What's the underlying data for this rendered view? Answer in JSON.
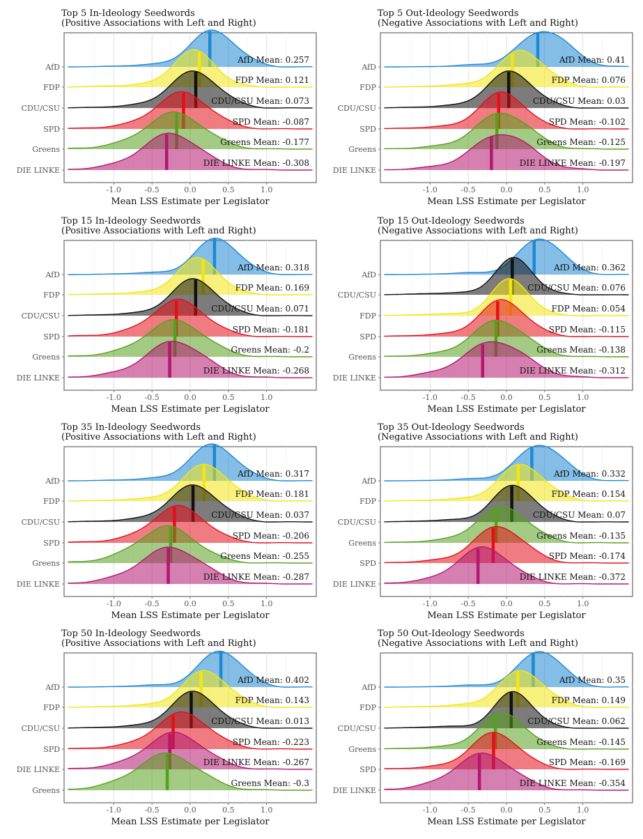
{
  "colors": {
    "AfD": "#1f88d3",
    "FDP": "#f3e613",
    "CDU/CSU": "#111111",
    "SPD": "#e3101b",
    "Greens": "#57a01f",
    "DIE LINKE": "#b2186f"
  },
  "chart_data": [
    {
      "type": "ridgeline",
      "title": "Top 5 In-Ideology Seedwords",
      "subtitle": "(Positive Associations with Left and Right)",
      "xlabel": "Mean LSS Estimate per Legislator",
      "x_ticks": [
        "-1.0",
        "-0.5",
        "0.0",
        "0.5",
        "1.0"
      ],
      "xlim": [
        -1.65,
        1.65
      ],
      "series": [
        {
          "party": "AfD",
          "mean": 0.257,
          "mean_label": "AfD Mean: 0.257",
          "peak": 0.3,
          "sd": 0.3
        },
        {
          "party": "FDP",
          "mean": 0.121,
          "mean_label": "FDP Mean: 0.121",
          "peak": 0.05,
          "sd": 0.28
        },
        {
          "party": "CDU/CSU",
          "mean": 0.073,
          "mean_label": "CDU/CSU Mean: 0.073",
          "peak": 0.05,
          "sd": 0.32
        },
        {
          "party": "SPD",
          "mean": -0.087,
          "mean_label": "SPD Mean: -0.087",
          "peak": -0.1,
          "sd": 0.35
        },
        {
          "party": "Greens",
          "mean": -0.177,
          "mean_label": "Greens Mean: -0.177",
          "peak": -0.2,
          "sd": 0.38
        },
        {
          "party": "DIE LINKE",
          "mean": -0.308,
          "mean_label": "DIE LINKE Mean: -0.308",
          "peak": -0.25,
          "sd": 0.38
        }
      ]
    },
    {
      "type": "ridgeline",
      "title": "Top 5 Out-Ideology Seedwords",
      "subtitle": "(Negative Associations with Left and Right)",
      "xlabel": "Mean LSS Estimate per Legislator",
      "x_ticks": [
        "-1.0",
        "-0.5",
        "0.0",
        "0.5",
        "1.0"
      ],
      "xlim": [
        -1.65,
        1.65
      ],
      "series": [
        {
          "party": "AfD",
          "mean": 0.41,
          "mean_label": "AfD Mean: 0.41",
          "peak": 0.5,
          "sd": 0.32
        },
        {
          "party": "FDP",
          "mean": 0.076,
          "mean_label": "FDP Mean: 0.076",
          "peak": 0.2,
          "sd": 0.3
        },
        {
          "party": "CDU/CSU",
          "mean": 0.03,
          "mean_label": "CDU/CSU Mean: 0.03",
          "peak": 0.05,
          "sd": 0.3
        },
        {
          "party": "SPD",
          "mean": -0.102,
          "mean_label": "SPD Mean: -0.102",
          "peak": -0.05,
          "sd": 0.3
        },
        {
          "party": "Greens",
          "mean": -0.125,
          "mean_label": "Greens Mean: -0.125",
          "peak": -0.05,
          "sd": 0.35
        },
        {
          "party": "DIE LINKE",
          "mean": -0.197,
          "mean_label": "DIE LINKE Mean: -0.197",
          "peak": -0.05,
          "sd": 0.38
        }
      ]
    },
    {
      "type": "ridgeline",
      "title": "Top 15 In-Ideology Seedwords",
      "subtitle": "(Positive Associations with Left and Right)",
      "xlabel": "Mean LSS Estimate per Legislator",
      "x_ticks": [
        "-1.0",
        "-0.5",
        "0.0",
        "0.5",
        "1.0"
      ],
      "xlim": [
        -1.65,
        1.65
      ],
      "series": [
        {
          "party": "AfD",
          "mean": 0.318,
          "mean_label": "AfD Mean: 0.318",
          "peak": 0.35,
          "sd": 0.28
        },
        {
          "party": "FDP",
          "mean": 0.169,
          "mean_label": "FDP Mean: 0.169",
          "peak": 0.1,
          "sd": 0.28
        },
        {
          "party": "CDU/CSU",
          "mean": 0.071,
          "mean_label": "CDU/CSU Mean: 0.071",
          "peak": 0.05,
          "sd": 0.3
        },
        {
          "party": "SPD",
          "mean": -0.181,
          "mean_label": "SPD Mean: -0.181",
          "peak": -0.15,
          "sd": 0.35
        },
        {
          "party": "Greens",
          "mean": -0.2,
          "mean_label": "Greens Mean: -0.2",
          "peak": -0.2,
          "sd": 0.38
        },
        {
          "party": "DIE LINKE",
          "mean": -0.268,
          "mean_label": "DIE LINKE Mean: -0.268",
          "peak": -0.2,
          "sd": 0.38
        }
      ]
    },
    {
      "type": "ridgeline",
      "title": "Top 15 Out-Ideology Seedwords",
      "subtitle": "(Negative Associations with Left and Right)",
      "xlabel": "Mean LSS Estimate per Legislator",
      "x_ticks": [
        "-1.0",
        "-0.5",
        "0.0",
        "0.5",
        "1.0"
      ],
      "xlim": [
        -1.65,
        1.65
      ],
      "series": [
        {
          "party": "AfD",
          "mean": 0.362,
          "mean_label": "AfD Mean: 0.362",
          "peak": 0.45,
          "sd": 0.28
        },
        {
          "party": "CDU/CSU",
          "mean": 0.076,
          "mean_label": "CDU/CSU Mean: 0.076",
          "peak": 0.1,
          "sd": 0.25
        },
        {
          "party": "FDP",
          "mean": 0.054,
          "mean_label": "FDP Mean: 0.054",
          "peak": 0.05,
          "sd": 0.25
        },
        {
          "party": "SPD",
          "mean": -0.115,
          "mean_label": "SPD Mean: -0.115",
          "peak": -0.05,
          "sd": 0.3
        },
        {
          "party": "Greens",
          "mean": -0.138,
          "mean_label": "Greens Mean: -0.138",
          "peak": -0.1,
          "sd": 0.35
        },
        {
          "party": "DIE LINKE",
          "mean": -0.312,
          "mean_label": "DIE LINKE Mean: -0.312",
          "peak": -0.15,
          "sd": 0.4
        }
      ]
    },
    {
      "type": "ridgeline",
      "title": "Top 35 In-Ideology Seedwords",
      "subtitle": "(Positive Associations with Left and Right)",
      "xlabel": "Mean LSS Estimate per Legislator",
      "x_ticks": [
        "-1.0",
        "-0.5",
        "0.0",
        "0.5",
        "1.0"
      ],
      "xlim": [
        -1.65,
        1.65
      ],
      "series": [
        {
          "party": "AfD",
          "mean": 0.317,
          "mean_label": "AfD Mean: 0.317",
          "peak": 0.3,
          "sd": 0.3
        },
        {
          "party": "FDP",
          "mean": 0.181,
          "mean_label": "FDP Mean: 0.181",
          "peak": 0.2,
          "sd": 0.3
        },
        {
          "party": "CDU/CSU",
          "mean": 0.037,
          "mean_label": "CDU/CSU Mean: 0.037",
          "peak": 0.05,
          "sd": 0.32
        },
        {
          "party": "SPD",
          "mean": -0.206,
          "mean_label": "SPD Mean: -0.206",
          "peak": -0.15,
          "sd": 0.35
        },
        {
          "party": "Greens",
          "mean": -0.255,
          "mean_label": "Greens Mean: -0.255",
          "peak": -0.3,
          "sd": 0.38
        },
        {
          "party": "DIE LINKE",
          "mean": -0.287,
          "mean_label": "DIE LINKE Mean: -0.287",
          "peak": -0.25,
          "sd": 0.4
        }
      ]
    },
    {
      "type": "ridgeline",
      "title": "Top 35 Out-Ideology Seedwords",
      "subtitle": "(Negative Associations with Left and Right)",
      "xlabel": "Mean LSS Estimate per Legislator",
      "x_ticks": [
        "-1.0",
        "-0.5",
        "0.0",
        "0.5",
        "1.0"
      ],
      "xlim": [
        -1.65,
        1.65
      ],
      "series": [
        {
          "party": "AfD",
          "mean": 0.332,
          "mean_label": "AfD Mean: 0.332",
          "peak": 0.45,
          "sd": 0.3
        },
        {
          "party": "FDP",
          "mean": 0.154,
          "mean_label": "FDP Mean: 0.154",
          "peak": 0.2,
          "sd": 0.3
        },
        {
          "party": "CDU/CSU",
          "mean": 0.07,
          "mean_label": "CDU/CSU Mean: 0.07",
          "peak": 0.1,
          "sd": 0.28
        },
        {
          "party": "Greens",
          "mean": -0.135,
          "mean_label": "Greens Mean: -0.135",
          "peak": -0.05,
          "sd": 0.33
        },
        {
          "party": "SPD",
          "mean": -0.174,
          "mean_label": "SPD Mean: -0.174",
          "peak": -0.1,
          "sd": 0.33
        },
        {
          "party": "DIE LINKE",
          "mean": -0.372,
          "mean_label": "DIE LINKE Mean: -0.372",
          "peak": -0.3,
          "sd": 0.35
        }
      ]
    },
    {
      "type": "ridgeline",
      "title": "Top 50 In-Ideology Seedwords",
      "subtitle": "(Positive Associations with Left and Right)",
      "xlabel": "Mean LSS Estimate per Legislator",
      "x_ticks": [
        "-1.0",
        "-0.5",
        "0.0",
        "0.5",
        "1.0"
      ],
      "xlim": [
        -1.65,
        1.65
      ],
      "series": [
        {
          "party": "AfD",
          "mean": 0.402,
          "mean_label": "AfD Mean: 0.402",
          "peak": 0.4,
          "sd": 0.28
        },
        {
          "party": "FDP",
          "mean": 0.143,
          "mean_label": "FDP Mean: 0.143",
          "peak": 0.2,
          "sd": 0.3
        },
        {
          "party": "CDU/CSU",
          "mean": 0.013,
          "mean_label": "CDU/CSU Mean: 0.013",
          "peak": 0.05,
          "sd": 0.3
        },
        {
          "party": "SPD",
          "mean": -0.223,
          "mean_label": "SPD Mean: -0.223",
          "peak": -0.1,
          "sd": 0.35
        },
        {
          "party": "DIE LINKE",
          "mean": -0.267,
          "mean_label": "DIE LINKE Mean: -0.267",
          "peak": -0.2,
          "sd": 0.38
        },
        {
          "party": "Greens",
          "mean": -0.3,
          "mean_label": "Greens Mean: -0.3",
          "peak": -0.3,
          "sd": 0.4
        }
      ]
    },
    {
      "type": "ridgeline",
      "title": "Top 50 Out-Ideology Seedwords",
      "subtitle": "(Negative Associations with Left and Right)",
      "xlabel": "Mean LSS Estimate per Legislator",
      "x_ticks": [
        "-1.0",
        "-0.5",
        "0.0",
        "0.5",
        "1.0"
      ],
      "xlim": [
        -1.65,
        1.65
      ],
      "series": [
        {
          "party": "AfD",
          "mean": 0.35,
          "mean_label": "AfD Mean: 0.35",
          "peak": 0.45,
          "sd": 0.28
        },
        {
          "party": "FDP",
          "mean": 0.149,
          "mean_label": "FDP Mean: 0.149",
          "peak": 0.2,
          "sd": 0.3
        },
        {
          "party": "CDU/CSU",
          "mean": 0.062,
          "mean_label": "CDU/CSU Mean: 0.062",
          "peak": 0.1,
          "sd": 0.25
        },
        {
          "party": "Greens",
          "mean": -0.145,
          "mean_label": "Greens Mean: -0.145",
          "peak": -0.05,
          "sd": 0.3
        },
        {
          "party": "SPD",
          "mean": -0.169,
          "mean_label": "SPD Mean: -0.169",
          "peak": -0.15,
          "sd": 0.32
        },
        {
          "party": "DIE LINKE",
          "mean": -0.354,
          "mean_label": "DIE LINKE Mean: -0.354",
          "peak": -0.3,
          "sd": 0.38
        }
      ]
    }
  ]
}
